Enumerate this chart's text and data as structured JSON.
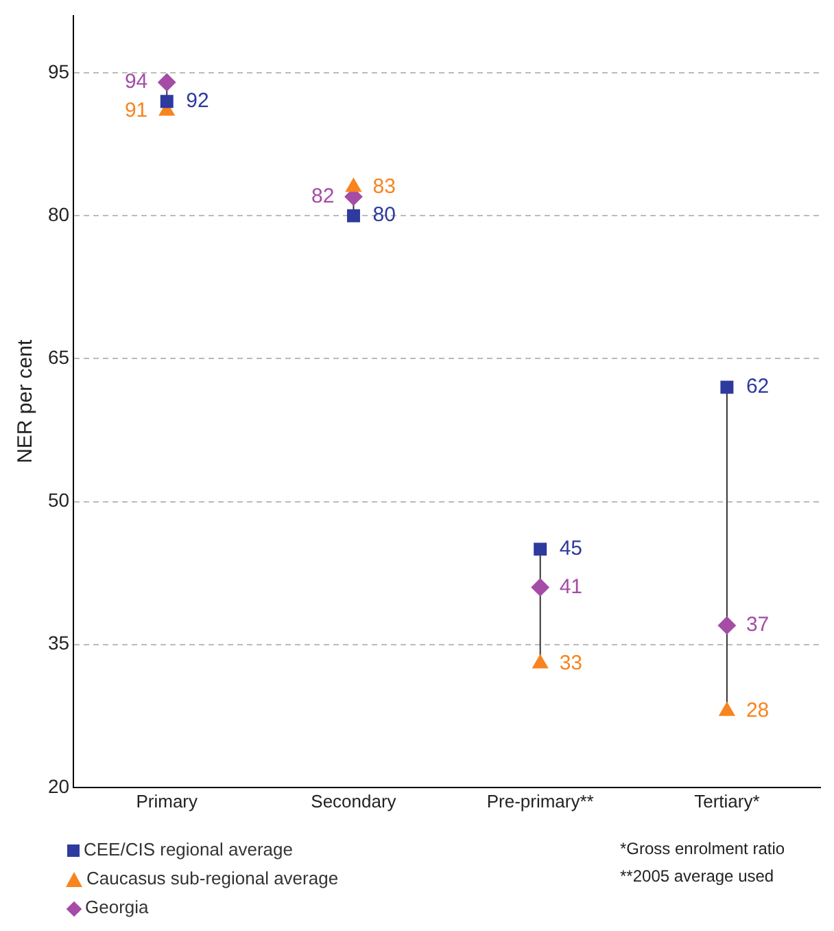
{
  "chart_data": {
    "type": "scatter",
    "ylabel": "NER per cent",
    "categories": [
      "Primary",
      "Secondary",
      "Pre-primary**",
      "Tertiary*"
    ],
    "series": [
      {
        "name": "CEE/CIS regional average",
        "color": "#2e3a9e",
        "marker": "square",
        "values": [
          92,
          80,
          45,
          62
        ]
      },
      {
        "name": "Caucasus sub-regional average",
        "color": "#f7841e",
        "marker": "triangle",
        "values": [
          91,
          83,
          33,
          28
        ]
      },
      {
        "name": "Georgia",
        "color": "#a54ca6",
        "marker": "diamond",
        "values": [
          94,
          82,
          41,
          37
        ]
      }
    ],
    "ylim": [
      20,
      101
    ],
    "yticks": [
      20,
      35,
      50,
      65,
      80,
      95
    ],
    "grid": "y",
    "legend": "bottom left",
    "data_labels": true,
    "annotations": [
      "*Gross enrolment ratio",
      "**2005 average used"
    ]
  }
}
